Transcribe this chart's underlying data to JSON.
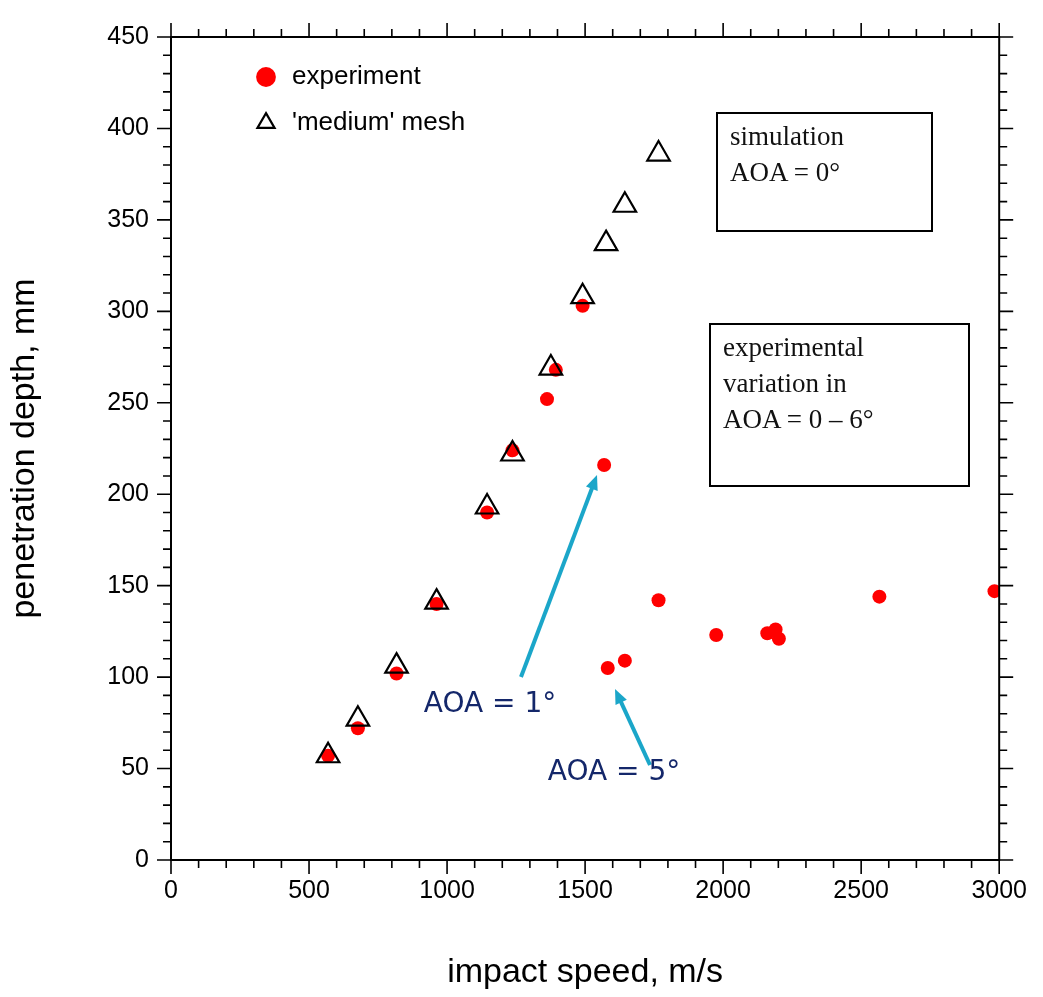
{
  "chart_data": {
    "type": "scatter",
    "xlabel": "impact speed, m/s",
    "ylabel": "penetration depth, mm",
    "series": [
      {
        "name": "experiment",
        "type": "scatter",
        "marker": "circle",
        "color": "#ff0000",
        "x": [
          569,
          677,
          817,
          962,
          1145,
          1237,
          1362,
          1394,
          1491,
          1569,
          1582,
          1644,
          1766,
          1975,
          2160,
          2190,
          2202,
          2566,
          2983
        ],
        "values": [
          57,
          72,
          102,
          140,
          190,
          224,
          252,
          268,
          303,
          216,
          105,
          109,
          142,
          123,
          124,
          126,
          121,
          144,
          147
        ]
      },
      {
        "name": "'medium' mesh",
        "type": "scatter",
        "marker": "triangle",
        "color": "#000000",
        "x": [
          569,
          677,
          817,
          962,
          1145,
          1237,
          1376,
          1491,
          1576,
          1644,
          1766
        ],
        "values": [
          57,
          77,
          106,
          141,
          193,
          222,
          269,
          308,
          337,
          358,
          386
        ]
      }
    ],
    "xlim": [
      0,
      3000
    ],
    "xticks": [
      0,
      {
        "value": 100,
        "label": null
      },
      {
        "value": 200,
        "label": null
      },
      {
        "value": 300,
        "label": null
      },
      {
        "value": 400,
        "label": null
      },
      500,
      {
        "value": 600,
        "label": null
      },
      {
        "value": 700,
        "label": null
      },
      {
        "value": 800,
        "label": null
      },
      {
        "value": 900,
        "label": null
      },
      1000,
      {
        "value": 1100,
        "label": null
      },
      {
        "value": 1200,
        "label": null
      },
      {
        "value": 1300,
        "label": null
      },
      {
        "value": 1400,
        "label": null
      },
      1500,
      {
        "value": 1600,
        "label": null
      },
      {
        "value": 1700,
        "label": null
      },
      {
        "value": 1800,
        "label": null
      },
      {
        "value": 1900,
        "label": null
      },
      2000,
      {
        "value": 2100,
        "label": null
      },
      {
        "value": 2200,
        "label": null
      },
      {
        "value": 2300,
        "label": null
      },
      {
        "value": 2400,
        "label": null
      },
      2500,
      {
        "value": 2600,
        "label": null
      },
      {
        "value": 2700,
        "label": null
      },
      {
        "value": 2800,
        "label": null
      },
      {
        "value": 2900,
        "label": null
      },
      3000
    ],
    "ylim": [
      0,
      450
    ],
    "yticks": [
      0,
      {
        "value": 10,
        "label": null
      },
      {
        "value": 20,
        "label": null
      },
      {
        "value": 30,
        "label": null
      },
      {
        "value": 40,
        "label": null
      },
      50,
      {
        "value": 60,
        "label": null
      },
      {
        "value": 70,
        "label": null
      },
      {
        "value": 80,
        "label": null
      },
      {
        "value": 90,
        "label": null
      },
      100,
      {
        "value": 110,
        "label": null
      },
      {
        "value": 120,
        "label": null
      },
      {
        "value": 130,
        "label": null
      },
      {
        "value": 140,
        "label": null
      },
      150,
      {
        "value": 160,
        "label": null
      },
      {
        "value": 170,
        "label": null
      },
      {
        "value": 180,
        "label": null
      },
      {
        "value": 190,
        "label": null
      },
      200,
      {
        "value": 210,
        "label": null
      },
      {
        "value": 220,
        "label": null
      },
      {
        "value": 230,
        "label": null
      },
      {
        "value": 240,
        "label": null
      },
      250,
      {
        "value": 260,
        "label": null
      },
      {
        "value": 270,
        "label": null
      },
      {
        "value": 280,
        "label": null
      },
      {
        "value": 290,
        "label": null
      },
      300,
      {
        "value": 310,
        "label": null
      },
      {
        "value": 320,
        "label": null
      },
      {
        "value": 330,
        "label": null
      },
      {
        "value": 340,
        "label": null
      },
      350,
      {
        "value": 360,
        "label": null
      },
      {
        "value": 370,
        "label": null
      },
      {
        "value": 380,
        "label": null
      },
      {
        "value": 390,
        "label": null
      },
      400,
      {
        "value": 410,
        "label": null
      },
      {
        "value": 420,
        "label": null
      },
      {
        "value": 430,
        "label": null
      },
      {
        "value": 440,
        "label": null
      },
      450
    ],
    "grid": false,
    "legend": "top left",
    "annotations": [
      "simulation\nAOA = 0°",
      "experimental\nvariation in\nAOA = 0 – 6°",
      "AOA = 1°",
      "AOA = 5°"
    ]
  }
}
